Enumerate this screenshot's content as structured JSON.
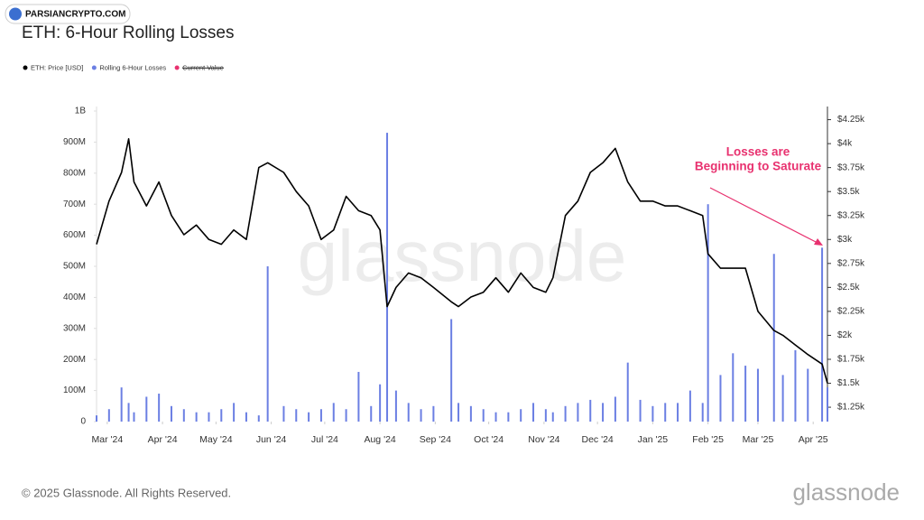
{
  "chart_data": {
    "type": "bar-line",
    "title": "ETH: 6-Hour Rolling Losses",
    "badge": "PARSIANCRYPTO.COM",
    "watermark": "glassnode",
    "copyright": "© 2025 Glassnode. All Rights Reserved.",
    "annotation": [
      "Losses are",
      "Beginning to Saturate"
    ],
    "annotation_color": "#e8316f",
    "legend_extra": {
      "name": "Current Value",
      "color": "#e8316f"
    },
    "x": [
      -6,
      1,
      8,
      12,
      15,
      22,
      29,
      36,
      43,
      50,
      57,
      64,
      71,
      78,
      85,
      90,
      99,
      106,
      113,
      120,
      127,
      134,
      141,
      148,
      153,
      157,
      162,
      169,
      176,
      183,
      193,
      197,
      204,
      211,
      218,
      225,
      232,
      239,
      246,
      250,
      257,
      264,
      271,
      278,
      285,
      292,
      299,
      306,
      313,
      320,
      327,
      334,
      337,
      344,
      351,
      358,
      365,
      374,
      379,
      386,
      393,
      401,
      404
    ],
    "xlim": [
      -6,
      404
    ],
    "xticks": [
      {
        "value": 0,
        "label": "Mar '24"
      },
      {
        "value": 31,
        "label": "Apr '24"
      },
      {
        "value": 61,
        "label": "May '24"
      },
      {
        "value": 92,
        "label": "Jun '24"
      },
      {
        "value": 122,
        "label": "Jul '24"
      },
      {
        "value": 153,
        "label": "Aug '24"
      },
      {
        "value": 184,
        "label": "Sep '24"
      },
      {
        "value": 214,
        "label": "Oct '24"
      },
      {
        "value": 245,
        "label": "Nov '24"
      },
      {
        "value": 275,
        "label": "Dec '24"
      },
      {
        "value": 306,
        "label": "Jan '25"
      },
      {
        "value": 337,
        "label": "Feb '25"
      },
      {
        "value": 365,
        "label": "Mar '25"
      },
      {
        "value": 396,
        "label": "Apr '25"
      }
    ],
    "ylim": [
      0,
      1000
    ],
    "yticks": [
      0,
      {
        "value": 100,
        "label": "100M"
      },
      {
        "value": 200,
        "label": "200M"
      },
      {
        "value": 300,
        "label": "300M"
      },
      {
        "value": 400,
        "label": "400M"
      },
      {
        "value": 500,
        "label": "500M"
      },
      {
        "value": 600,
        "label": "600M"
      },
      {
        "value": 700,
        "label": "700M"
      },
      {
        "value": 800,
        "label": "800M"
      },
      {
        "value": 900,
        "label": "900M"
      },
      {
        "value": 1000,
        "label": "1B"
      }
    ],
    "y2lim": [
      1100,
      4340
    ],
    "y2ticks": [
      {
        "value": 1250,
        "label": "$1.25k"
      },
      {
        "value": 1500,
        "label": "$1.5k"
      },
      {
        "value": 1750,
        "label": "$1.75k"
      },
      {
        "value": 2000,
        "label": "$2k"
      },
      {
        "value": 2250,
        "label": "$2.25k"
      },
      {
        "value": 2500,
        "label": "$2.5k"
      },
      {
        "value": 2750,
        "label": "$2.75k"
      },
      {
        "value": 3000,
        "label": "$3k"
      },
      {
        "value": 3250,
        "label": "$3.25k"
      },
      {
        "value": 3500,
        "label": "$3.5k"
      },
      {
        "value": 3750,
        "label": "$3.75k"
      },
      {
        "value": 4000,
        "label": "$4k"
      },
      {
        "value": 4250,
        "label": "$4.25k"
      }
    ],
    "grid": false,
    "series": [
      {
        "name": "ETH: Price [USD]",
        "color": "#000000",
        "type": "line",
        "axis": "y2",
        "values": [
          2950,
          3400,
          3700,
          4050,
          3600,
          3350,
          3600,
          3250,
          3050,
          3150,
          3000,
          2950,
          3100,
          3000,
          3750,
          3800,
          3700,
          3500,
          3350,
          3000,
          3100,
          3450,
          3300,
          3250,
          3100,
          2300,
          2500,
          2650,
          2600,
          2500,
          2350,
          2300,
          2400,
          2450,
          2600,
          2450,
          2650,
          2500,
          2450,
          2600,
          3250,
          3400,
          3700,
          3800,
          3950,
          3600,
          3400,
          3400,
          3350,
          3350,
          3300,
          3250,
          2850,
          2700,
          2700,
          2700,
          2250,
          2050,
          2000,
          1900,
          1800,
          1700,
          1500
        ]
      },
      {
        "name": "Rolling 6-Hour Losses",
        "color": "#6b7fe3",
        "type": "bar",
        "values": [
          20,
          40,
          110,
          60,
          30,
          80,
          90,
          50,
          40,
          30,
          30,
          40,
          60,
          30,
          20,
          500,
          50,
          40,
          30,
          40,
          60,
          40,
          160,
          50,
          120,
          930,
          100,
          60,
          40,
          50,
          330,
          60,
          50,
          40,
          30,
          30,
          40,
          60,
          40,
          30,
          50,
          60,
          70,
          60,
          80,
          190,
          70,
          50,
          60,
          60,
          100,
          60,
          700,
          150,
          220,
          180,
          170,
          540,
          150,
          230,
          170,
          560,
          110
        ]
      }
    ]
  }
}
